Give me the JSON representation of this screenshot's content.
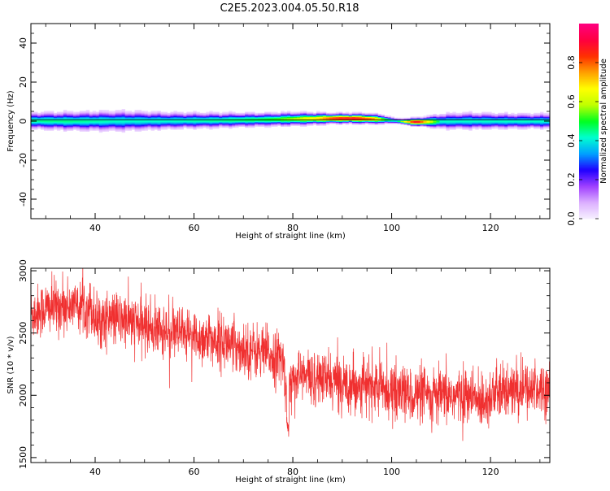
{
  "title": "C2E5.2023.004.05.50.R18",
  "colorbar": {
    "label": "Normalized spectral amplitude",
    "ticks": [
      "0.0",
      "0.2",
      "0.4",
      "0.6",
      "0.8"
    ],
    "tick_values": [
      0.0,
      0.2,
      0.4,
      0.6,
      0.8
    ],
    "range": [
      0,
      1
    ]
  },
  "chart_data": [
    {
      "type": "heatmap",
      "xlabel": "Height of straight line (km)",
      "ylabel": "Frequency (Hz)",
      "xlim": [
        27,
        132
      ],
      "ylim": [
        -50,
        50
      ],
      "xticks": [
        40,
        60,
        80,
        100,
        120
      ],
      "xtick_labels": [
        "40",
        "60",
        "80",
        "100",
        "120"
      ],
      "yticks": [
        -40,
        -20,
        0,
        20,
        40
      ],
      "ytick_labels": [
        "-40",
        "-20",
        "0",
        "20",
        "40"
      ],
      "band_x": [
        27,
        35,
        45,
        55,
        65,
        75,
        80,
        85,
        88,
        92,
        96,
        99,
        101,
        103,
        105,
        107,
        110,
        115,
        125,
        132
      ],
      "band_center_hz": [
        0.3,
        0.1,
        0.2,
        0.3,
        0.5,
        0.9,
        1.2,
        1.4,
        1.5,
        1.5,
        1.3,
        0.8,
        0.2,
        -0.2,
        -0.3,
        -0.2,
        0.0,
        0.2,
        0.1,
        0.1
      ],
      "band_peak_amplitude": [
        0.45,
        0.45,
        0.42,
        0.42,
        0.45,
        0.5,
        0.58,
        0.7,
        0.85,
        0.9,
        0.8,
        0.5,
        0.4,
        0.7,
        0.95,
        0.7,
        0.42,
        0.42,
        0.42,
        0.42
      ],
      "band_halfwidth_hz": [
        5.0,
        5.5,
        6.0,
        5.0,
        4.5,
        4.0,
        4.0,
        3.5,
        3.0,
        3.0,
        3.0,
        2.5,
        1.5,
        2.0,
        2.5,
        3.0,
        4.5,
        5.0,
        4.5,
        4.5
      ],
      "colormap": [
        "#f6f0ff",
        "#dcb0ff",
        "#a040ff",
        "#2000ff",
        "#00a0ff",
        "#00ffd0",
        "#00ff20",
        "#c0ff00",
        "#ffff00",
        "#ffa000",
        "#ff3000",
        "#ff0040",
        "#ff0080"
      ]
    },
    {
      "type": "line",
      "xlabel": "Height of straight line (km)",
      "ylabel": "SNR (10 * v/v)",
      "xlim": [
        27,
        132
      ],
      "ylim": [
        1460,
        3020
      ],
      "xticks": [
        40,
        60,
        80,
        100,
        120
      ],
      "xtick_labels": [
        "40",
        "60",
        "80",
        "100",
        "120"
      ],
      "yticks": [
        1500,
        2000,
        2500,
        3000
      ],
      "ytick_labels": [
        "1500",
        "2000",
        "2500",
        "3000"
      ],
      "color": "#f03030",
      "series": [
        {
          "trend_x": [
            27,
            30,
            35,
            39,
            40,
            45,
            50,
            55,
            60,
            65,
            70,
            75,
            78,
            78.5,
            79,
            80,
            85,
            90,
            95,
            100,
            105,
            110,
            115,
            118,
            120,
            125,
            130,
            132
          ],
          "trend_y": [
            2650,
            2700,
            2720,
            2720,
            2620,
            2610,
            2560,
            2500,
            2470,
            2440,
            2380,
            2330,
            2280,
            2100,
            1950,
            2160,
            2140,
            2100,
            2080,
            2040,
            2000,
            1990,
            2000,
            1950,
            2000,
            2040,
            2060,
            2060
          ],
          "noise_std": 110,
          "dip": {
            "x": 79,
            "y": 1760
          }
        }
      ]
    }
  ]
}
